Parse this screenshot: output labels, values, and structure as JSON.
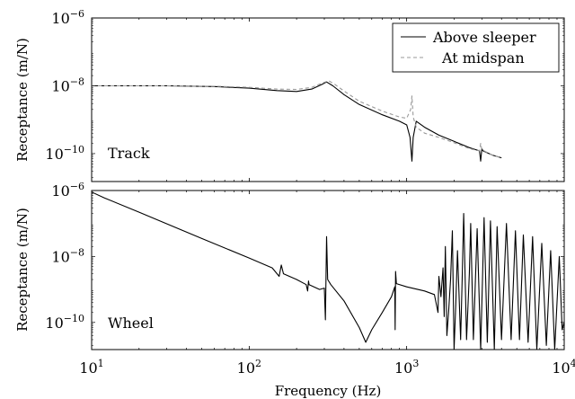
{
  "chart_data": [
    {
      "type": "line",
      "panel_label": "Track",
      "xscale": "log",
      "yscale": "log",
      "xlim": [
        10,
        10000
      ],
      "ylim": [
        1.5e-11,
        1e-06
      ],
      "xlabel": "",
      "ylabel": "Receptance (m/N)",
      "y_ticks": [
        {
          "value": 1e-06,
          "base": "10",
          "exp": "−6"
        },
        {
          "value": 1e-08,
          "base": "10",
          "exp": "−8"
        },
        {
          "value": 1e-10,
          "base": "10",
          "exp": "−10"
        }
      ],
      "legend": {
        "position": "top-right"
      },
      "series": [
        {
          "name": "Above sleeper",
          "style": "solid",
          "color": "#000000",
          "points": [
            [
              10,
              1e-08
            ],
            [
              30,
              1e-08
            ],
            [
              60,
              9.5e-09
            ],
            [
              100,
              8.5e-09
            ],
            [
              150,
              7.2e-09
            ],
            [
              200,
              6.8e-09
            ],
            [
              250,
              8e-09
            ],
            [
              290,
              1.1e-08
            ],
            [
              310,
              1.3e-08
            ],
            [
              340,
              1e-08
            ],
            [
              400,
              5.5e-09
            ],
            [
              500,
              2.8e-09
            ],
            [
              700,
              1.4e-09
            ],
            [
              900,
              9e-10
            ],
            [
              1000,
              7e-10
            ],
            [
              1050,
              3e-10
            ],
            [
              1080,
              6e-11
            ],
            [
              1100,
              3e-10
            ],
            [
              1150,
              9e-10
            ],
            [
              1300,
              6e-10
            ],
            [
              1600,
              3.5e-10
            ],
            [
              2000,
              2.3e-10
            ],
            [
              2500,
              1.5e-10
            ],
            [
              2900,
              1.2e-10
            ],
            [
              2950,
              6e-11
            ],
            [
              3000,
              1.4e-10
            ],
            [
              3050,
              1.2e-10
            ],
            [
              3500,
              9e-11
            ],
            [
              4000,
              7.5e-11
            ]
          ]
        },
        {
          "name": "At midspan",
          "style": "dashed",
          "color": "#999999",
          "points": [
            [
              10,
              1e-08
            ],
            [
              30,
              1e-08
            ],
            [
              60,
              9.7e-09
            ],
            [
              100,
              9e-09
            ],
            [
              150,
              8e-09
            ],
            [
              200,
              7.8e-09
            ],
            [
              250,
              9e-09
            ],
            [
              290,
              1.2e-08
            ],
            [
              320,
              1.4e-08
            ],
            [
              350,
              1.1e-08
            ],
            [
              400,
              7e-09
            ],
            [
              500,
              3.5e-09
            ],
            [
              700,
              1.8e-09
            ],
            [
              900,
              1.2e-09
            ],
            [
              1000,
              1.1e-09
            ],
            [
              1060,
              2e-09
            ],
            [
              1080,
              5e-09
            ],
            [
              1100,
              1.2e-09
            ],
            [
              1150,
              6e-10
            ],
            [
              1300,
              4e-10
            ],
            [
              1600,
              3e-10
            ],
            [
              2000,
              2.1e-10
            ],
            [
              2500,
              1.4e-10
            ],
            [
              2900,
              1.2e-10
            ],
            [
              2950,
              2e-10
            ],
            [
              3000,
              1.3e-10
            ],
            [
              3500,
              9e-11
            ],
            [
              4000,
              7.5e-11
            ]
          ]
        }
      ]
    },
    {
      "type": "line",
      "panel_label": "Wheel",
      "xscale": "log",
      "yscale": "log",
      "xlim": [
        10,
        10000
      ],
      "ylim": [
        1.5e-11,
        1e-06
      ],
      "xlabel": "Frequency (Hz)",
      "ylabel": "Receptance (m/N)",
      "y_ticks": [
        {
          "value": 1e-06,
          "base": "10",
          "exp": "−6"
        },
        {
          "value": 1e-08,
          "base": "10",
          "exp": "−8"
        },
        {
          "value": 1e-10,
          "base": "10",
          "exp": "−10"
        }
      ],
      "x_ticks": [
        {
          "value": 10,
          "base": "10",
          "exp": "1"
        },
        {
          "value": 100,
          "base": "10",
          "exp": "2"
        },
        {
          "value": 1000,
          "base": "10",
          "exp": "3"
        },
        {
          "value": 10000,
          "base": "10",
          "exp": "4"
        }
      ],
      "series": [
        {
          "name": "",
          "style": "solid",
          "color": "#000000",
          "points": [
            [
              10,
              9e-07
            ],
            [
              12,
              6e-07
            ],
            [
              20,
              2.2e-07
            ],
            [
              50,
              3.5e-08
            ],
            [
              100,
              9e-09
            ],
            [
              140,
              4.5e-09
            ],
            [
              155,
              2.5e-09
            ],
            [
              160,
              5.5e-09
            ],
            [
              165,
              3e-09
            ],
            [
              200,
              2e-09
            ],
            [
              230,
              1.4e-09
            ],
            [
              235,
              9e-10
            ],
            [
              238,
              1.8e-09
            ],
            [
              240,
              1.4e-09
            ],
            [
              280,
              1e-09
            ],
            [
              300,
              1.1e-09
            ],
            [
              305,
              1.2e-10
            ],
            [
              310,
              4e-08
            ],
            [
              315,
              2e-09
            ],
            [
              330,
              1.4e-09
            ],
            [
              400,
              4.5e-10
            ],
            [
              500,
              7e-11
            ],
            [
              550,
              2.5e-11
            ],
            [
              600,
              6e-11
            ],
            [
              700,
              2e-10
            ],
            [
              800,
              6e-10
            ],
            [
              840,
              1.2e-09
            ],
            [
              845,
              6e-11
            ],
            [
              850,
              3.5e-09
            ],
            [
              860,
              1.5e-09
            ],
            [
              1000,
              1.2e-09
            ],
            [
              1300,
              9e-10
            ],
            [
              1500,
              7e-10
            ],
            [
              1580,
              2e-10
            ],
            [
              1600,
              2.5e-09
            ],
            [
              1650,
              6e-10
            ],
            [
              1700,
              4.5e-09
            ],
            [
              1730,
              1.5e-10
            ],
            [
              1760,
              2e-08
            ],
            [
              1800,
              4e-11
            ],
            [
              1850,
              2.5e-10
            ],
            [
              1900,
              2e-09
            ],
            [
              1950,
              6e-08
            ],
            [
              2000,
              1.5e-11
            ],
            [
              2050,
              3.5e-10
            ],
            [
              2100,
              1.5e-08
            ],
            [
              2200,
              3e-11
            ],
            [
              2250,
              2e-09
            ],
            [
              2300,
              2e-07
            ],
            [
              2400,
              3e-11
            ],
            [
              2500,
              3e-09
            ],
            [
              2550,
              1e-07
            ],
            [
              2650,
              3e-11
            ],
            [
              2800,
              7e-08
            ],
            [
              2950,
              1.5e-11
            ],
            [
              3100,
              1.5e-07
            ],
            [
              3250,
              2.5e-11
            ],
            [
              3400,
              1.2e-07
            ],
            [
              3600,
              1.5e-11
            ],
            [
              3750,
              8e-08
            ],
            [
              4000,
              3e-11
            ],
            [
              4300,
              1e-07
            ],
            [
              4600,
              3e-11
            ],
            [
              4900,
              6e-08
            ],
            [
              5200,
              3e-11
            ],
            [
              5500,
              4.5e-08
            ],
            [
              5900,
              2.5e-11
            ],
            [
              6300,
              4e-08
            ],
            [
              6700,
              1.5e-11
            ],
            [
              7200,
              2.5e-08
            ],
            [
              7700,
              2e-11
            ],
            [
              8200,
              1.5e-08
            ],
            [
              8700,
              1.5e-11
            ],
            [
              9300,
              1e-08
            ],
            [
              9700,
              6e-11
            ],
            [
              10000,
              1e-10
            ]
          ]
        }
      ]
    }
  ]
}
